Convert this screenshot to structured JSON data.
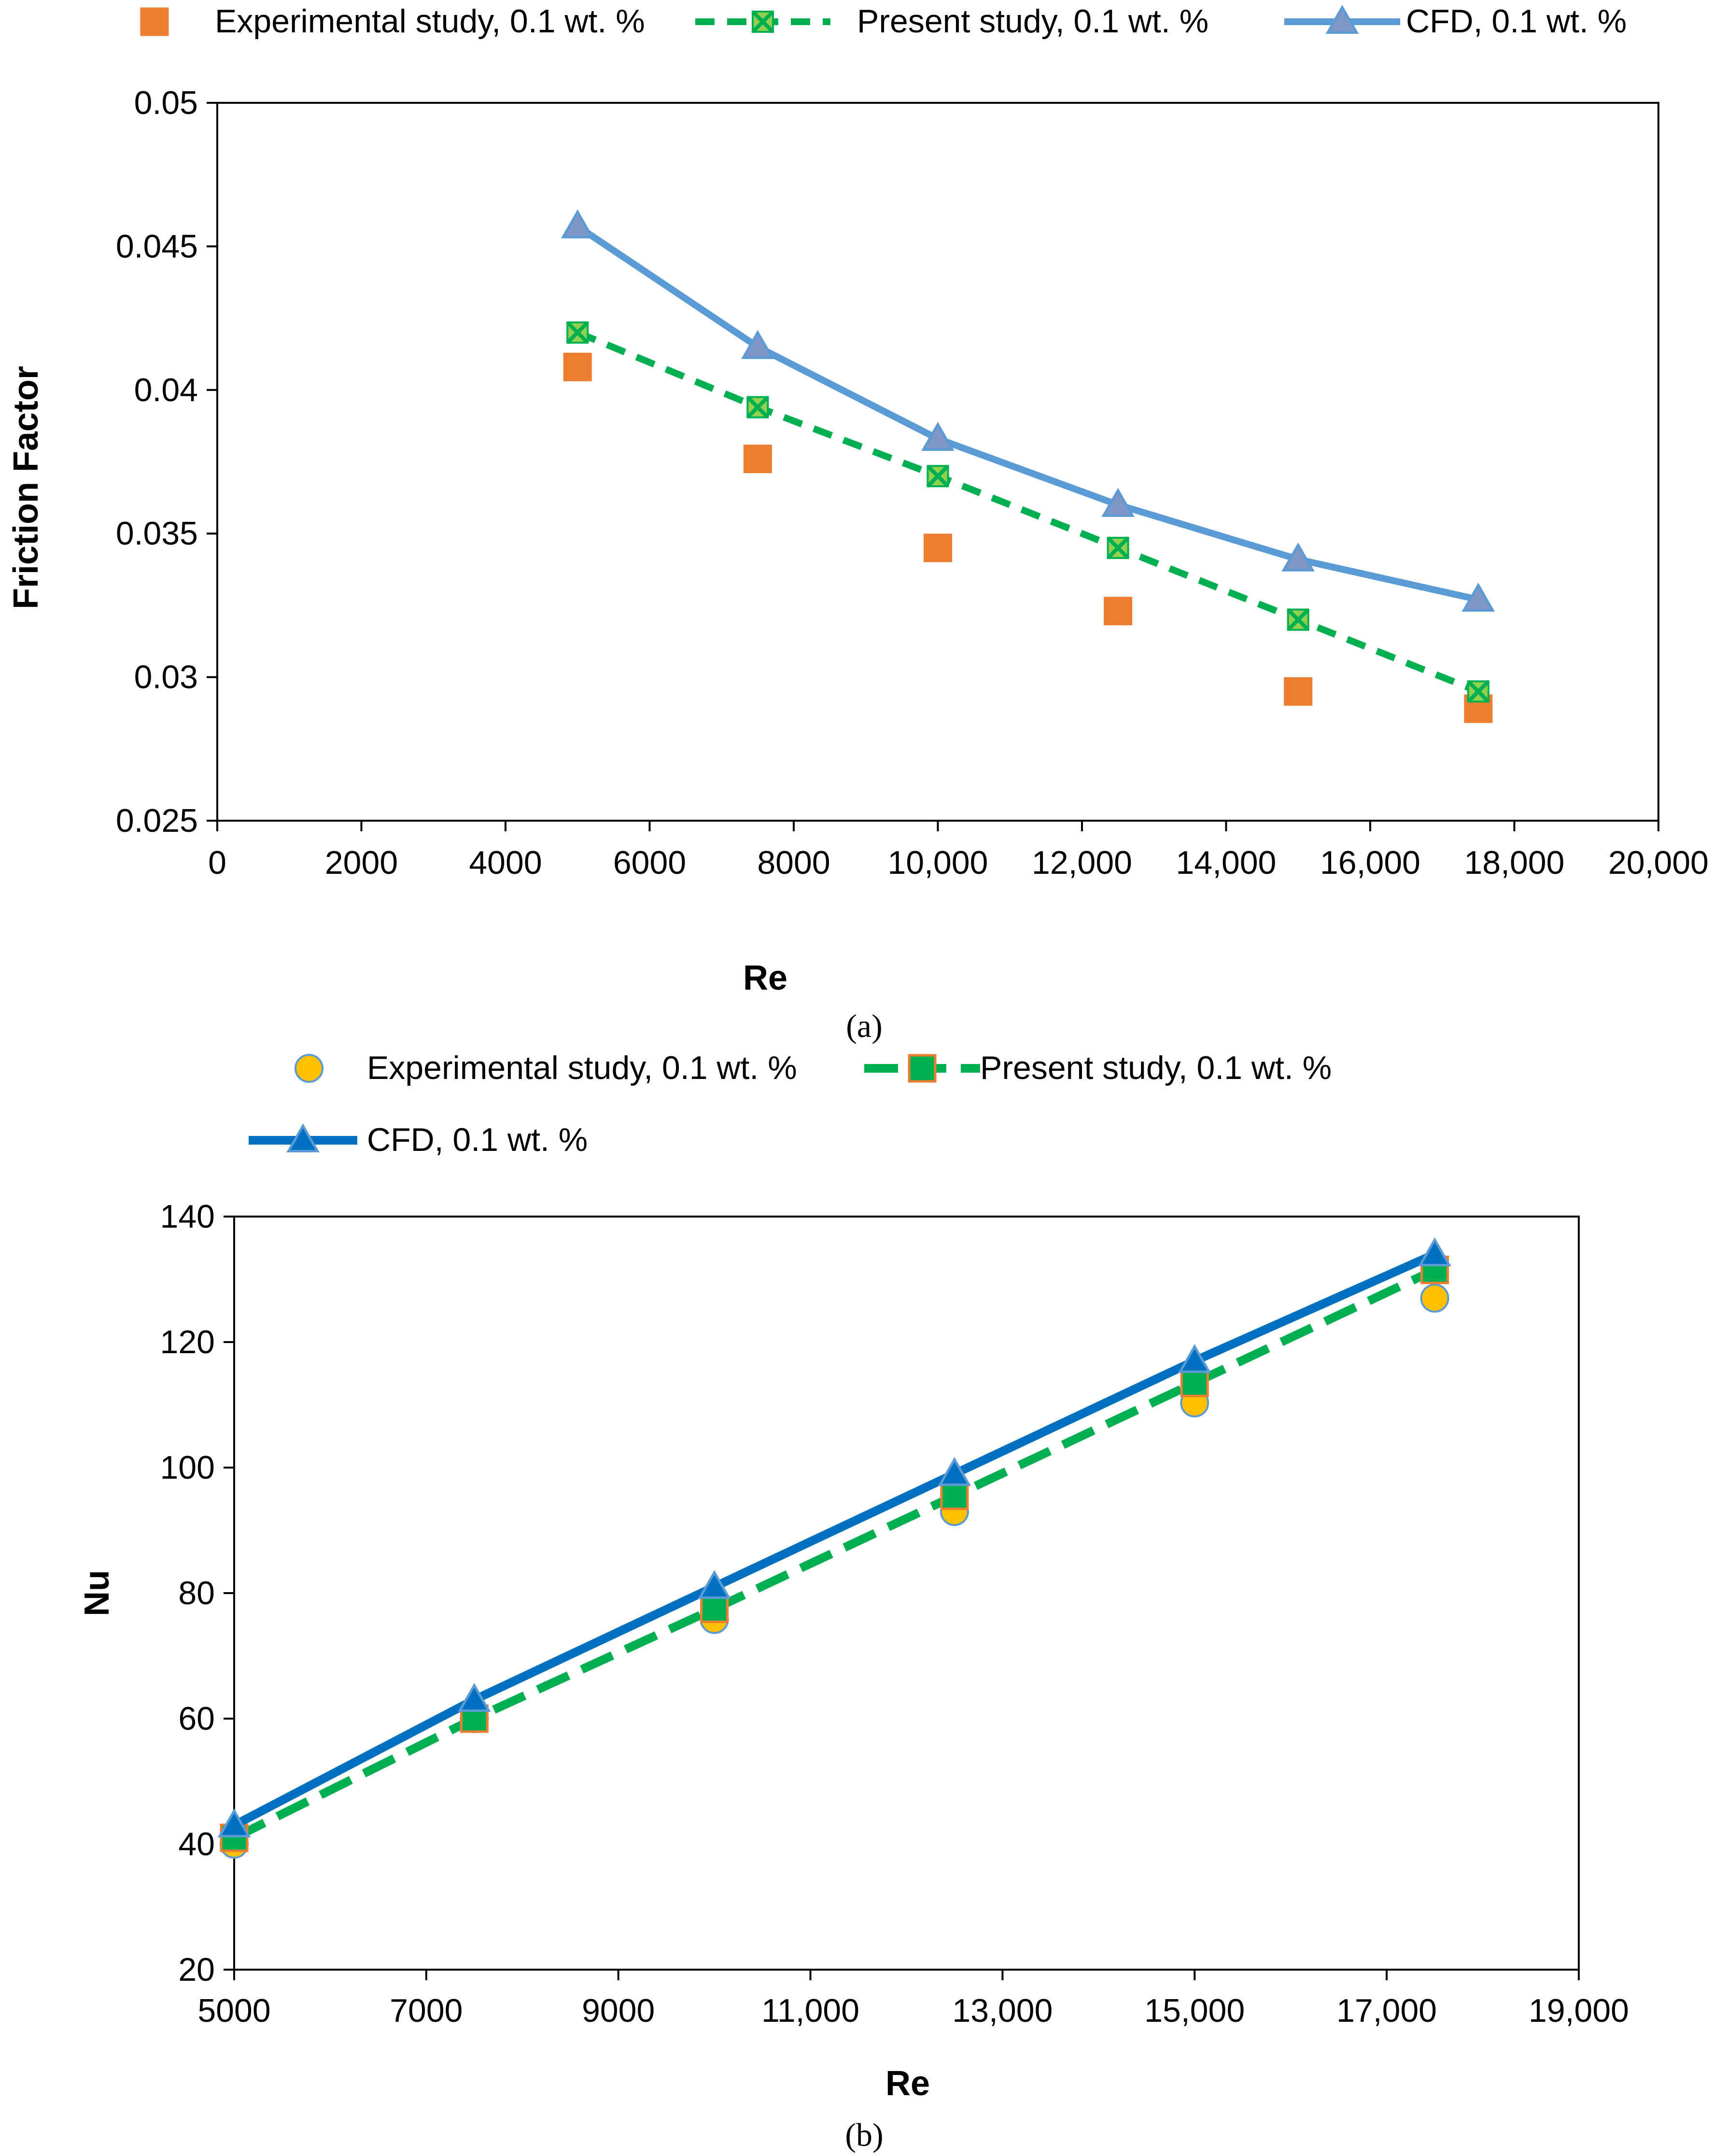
{
  "chart_data": [
    {
      "type": "scatter",
      "title": "",
      "caption": "(a)",
      "xlabel": "Re",
      "ylabel": "Friction Factor",
      "xlim": [
        0,
        20000
      ],
      "ylim": [
        0.025,
        0.05
      ],
      "xticks": [
        "0",
        "2000",
        "4000",
        "6000",
        "8000",
        "10,000",
        "12,000",
        "14,000",
        "16,000",
        "18,000",
        "20,000"
      ],
      "yticks": [
        "0.025",
        "0.03",
        "0.035",
        "0.04",
        "0.045",
        "0.05"
      ],
      "grid": false,
      "legend_position": "top",
      "series": [
        {
          "name": "Experimental study, 0.1 wt. %",
          "style": "markers",
          "marker": "square",
          "color": "#ED7D31",
          "x": [
            5000,
            7500,
            10000,
            12500,
            15000,
            17500
          ],
          "y": [
            0.0408,
            0.0376,
            0.0345,
            0.0323,
            0.0295,
            0.0289
          ]
        },
        {
          "name": "Present study, 0.1 wt. %",
          "style": "dashed-line",
          "marker": "x-square",
          "color": "#00B050",
          "marker_fill": "#92D050",
          "x": [
            5000,
            7500,
            10000,
            12500,
            15000,
            17500
          ],
          "y": [
            0.042,
            0.0394,
            0.037,
            0.0345,
            0.032,
            0.0295
          ]
        },
        {
          "name": "CFD, 0.1 wt. %",
          "style": "solid-line",
          "marker": "triangle",
          "color": "#5B9BD5",
          "marker_fill": "#7F96C6",
          "x": [
            5000,
            7500,
            10000,
            12500,
            15000,
            17500
          ],
          "y": [
            0.0457,
            0.0415,
            0.0383,
            0.036,
            0.0341,
            0.0327
          ]
        }
      ]
    },
    {
      "type": "line",
      "title": "",
      "caption": "(b)",
      "xlabel": "Re",
      "ylabel": "Nu",
      "xlim": [
        5000,
        19000
      ],
      "ylim": [
        20,
        140
      ],
      "xticks": [
        "5000",
        "7000",
        "9000",
        "11,000",
        "13,000",
        "15,000",
        "17,000",
        "19,000"
      ],
      "yticks": [
        "20",
        "40",
        "60",
        "80",
        "100",
        "120",
        "140"
      ],
      "grid": false,
      "legend_position": "top",
      "series": [
        {
          "name": "Experimental study, 0.1 wt. %",
          "style": "markers",
          "marker": "circle",
          "color": "#FFC000",
          "edge_color": "#5B9BD5",
          "x": [
            5000,
            7500,
            10000,
            12500,
            15000,
            17500
          ],
          "y": [
            40,
            60,
            75.8,
            93,
            110.3,
            127
          ]
        },
        {
          "name": "Present study, 0.1 wt. %",
          "style": "dashed-line",
          "marker": "square",
          "color": "#00B050",
          "edge_color": "#ED7D31",
          "x": [
            5000,
            7500,
            10000,
            12500,
            15000,
            17500
          ],
          "y": [
            41,
            60,
            77.5,
            95.5,
            113.5,
            131.5
          ]
        },
        {
          "name": "CFD, 0.1 wt. %",
          "style": "solid-line",
          "marker": "triangle",
          "color": "#0070C0",
          "edge_color": "#5B9BD5",
          "x": [
            5000,
            7500,
            10000,
            12500,
            15000,
            17500
          ],
          "y": [
            43,
            63,
            81,
            99,
            117,
            134
          ]
        }
      ]
    }
  ]
}
